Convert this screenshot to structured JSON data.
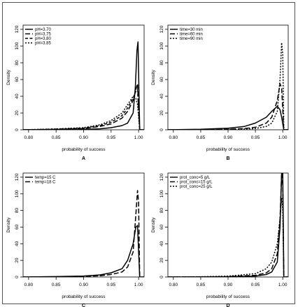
{
  "chart_data": [
    {
      "type": "line",
      "panel_label": "A",
      "xlabel": "probability of success",
      "ylabel": "Density",
      "xlim": [
        0.79,
        1.01
      ],
      "ylim": [
        0,
        125
      ],
      "x_ticks": [
        "0.80",
        "0.85",
        "0.90",
        "0.95",
        "1.00"
      ],
      "y_ticks": [
        "0",
        "20",
        "40",
        "60",
        "80",
        "100",
        "120"
      ],
      "legend_position": "top-left",
      "series": [
        {
          "name": "pH=3.70",
          "dash": "solid",
          "x": [
            0.79,
            0.85,
            0.9,
            0.93,
            0.95,
            0.97,
            0.98,
            0.99,
            0.994,
            0.997,
            0.999,
            1.002,
            1.01
          ],
          "y": [
            0,
            0.2,
            0.6,
            1.2,
            2.5,
            5,
            8,
            20,
            50,
            95,
            105,
            0,
            0
          ]
        },
        {
          "name": "pH=3.75",
          "dash": "long",
          "x": [
            0.79,
            0.85,
            0.9,
            0.93,
            0.95,
            0.97,
            0.98,
            0.99,
            0.995,
            0.998,
            1.002,
            1.01
          ],
          "y": [
            0,
            0.5,
            1.5,
            4,
            7,
            14,
            22,
            35,
            48,
            55,
            0,
            0
          ]
        },
        {
          "name": "pH=3.80",
          "dash": "dash",
          "x": [
            0.79,
            0.85,
            0.9,
            0.93,
            0.95,
            0.97,
            0.98,
            0.99,
            0.995,
            0.998,
            1.002,
            1.01
          ],
          "y": [
            0,
            0.8,
            2,
            5,
            9,
            17,
            26,
            38,
            46,
            48,
            0,
            0
          ]
        },
        {
          "name": "pH=3.85",
          "dash": "short",
          "x": [
            0.79,
            0.85,
            0.9,
            0.93,
            0.95,
            0.97,
            0.98,
            0.99,
            0.995,
            0.998,
            1.002,
            1.01
          ],
          "y": [
            0,
            1,
            2.5,
            6,
            11,
            20,
            30,
            40,
            38,
            30,
            0,
            0
          ]
        }
      ]
    },
    {
      "type": "line",
      "panel_label": "B",
      "xlabel": "probability of success",
      "ylabel": "Density",
      "xlim": [
        0.79,
        1.01
      ],
      "ylim": [
        0,
        125
      ],
      "x_ticks": [
        "0.80",
        "0.85",
        "0.90",
        "0.95",
        "1.00"
      ],
      "y_ticks": [
        "0",
        "20",
        "40",
        "60",
        "80",
        "100",
        "120"
      ],
      "legend_position": "top-left",
      "series": [
        {
          "name": "time=30 min",
          "dash": "solid",
          "x": [
            0.79,
            0.85,
            0.9,
            0.93,
            0.95,
            0.97,
            0.98,
            0.99,
            0.995,
            0.998,
            1.002,
            1.01
          ],
          "y": [
            0,
            0.6,
            1.8,
            4,
            8,
            15,
            22,
            28,
            24,
            15,
            0,
            0
          ]
        },
        {
          "name": "time=60 min",
          "dash": "long",
          "x": [
            0.79,
            0.85,
            0.9,
            0.93,
            0.95,
            0.97,
            0.98,
            0.99,
            0.995,
            0.998,
            1.002,
            1.01
          ],
          "y": [
            0,
            0.2,
            0.6,
            1.5,
            3,
            8,
            15,
            35,
            55,
            50,
            0,
            0
          ]
        },
        {
          "name": "time=90 min",
          "dash": "short",
          "x": [
            0.79,
            0.85,
            0.9,
            0.93,
            0.95,
            0.97,
            0.98,
            0.99,
            0.995,
            0.998,
            1.0,
            1.002,
            1.01
          ],
          "y": [
            0,
            0.1,
            0.3,
            0.8,
            1.5,
            4,
            8,
            22,
            60,
            104,
            90,
            0,
            0
          ]
        }
      ]
    },
    {
      "type": "line",
      "panel_label": "C",
      "xlabel": "probability of success",
      "ylabel": "Density",
      "xlim": [
        0.79,
        1.01
      ],
      "ylim": [
        0,
        125
      ],
      "x_ticks": [
        "0.80",
        "0.85",
        "0.90",
        "0.95",
        "1.00"
      ],
      "y_ticks": [
        "0",
        "20",
        "40",
        "60",
        "80",
        "100",
        "120"
      ],
      "legend_position": "top-left",
      "series": [
        {
          "name": "temp=15 C",
          "dash": "solid",
          "x": [
            0.79,
            0.85,
            0.9,
            0.93,
            0.95,
            0.97,
            0.98,
            0.99,
            0.995,
            0.998,
            1.002,
            1.01
          ],
          "y": [
            0,
            0.5,
            1.2,
            2.5,
            5,
            10,
            20,
            40,
            60,
            62,
            0,
            0
          ]
        },
        {
          "name": "temp=18 C",
          "dash": "long",
          "x": [
            0.79,
            0.85,
            0.9,
            0.93,
            0.95,
            0.97,
            0.98,
            0.99,
            0.995,
            0.998,
            1.0,
            1.002,
            1.01
          ],
          "y": [
            0,
            0.2,
            0.6,
            1.5,
            3,
            6,
            12,
            30,
            75,
            104,
            90,
            0,
            0
          ]
        }
      ]
    },
    {
      "type": "line",
      "panel_label": "D",
      "xlabel": "probability of success",
      "ylabel": "Density",
      "xlim": [
        0.79,
        1.01
      ],
      "ylim": [
        0,
        125
      ],
      "x_ticks": [
        "0.80",
        "0.85",
        "0.90",
        "0.95",
        "1.00"
      ],
      "y_ticks": [
        "0",
        "20",
        "40",
        "60",
        "80",
        "100",
        "120"
      ],
      "legend_position": "top-left",
      "series": [
        {
          "name": "prot_conc=5 g/L",
          "dash": "solid",
          "x": [
            0.79,
            0.85,
            0.9,
            0.95,
            0.97,
            0.98,
            0.99,
            0.995,
            0.998,
            1.0,
            1.002,
            1.01
          ],
          "y": [
            0,
            0.1,
            0.3,
            1,
            3,
            6,
            18,
            60,
            125,
            125,
            0,
            0
          ]
        },
        {
          "name": "prot_conc=15 g/L",
          "dash": "long",
          "x": [
            0.79,
            0.85,
            0.9,
            0.95,
            0.97,
            0.98,
            0.99,
            0.995,
            0.998,
            1.0,
            1.002,
            1.01
          ],
          "y": [
            0,
            0.2,
            0.5,
            2,
            5,
            10,
            28,
            70,
            125,
            110,
            0,
            0
          ]
        },
        {
          "name": "prot_conc=25 g/L",
          "dash": "short",
          "x": [
            0.79,
            0.85,
            0.9,
            0.95,
            0.97,
            0.98,
            0.99,
            0.995,
            0.998,
            1.0,
            1.002,
            1.01
          ],
          "y": [
            0,
            0.3,
            1,
            4,
            10,
            18,
            40,
            70,
            95,
            80,
            0,
            0
          ]
        }
      ]
    }
  ]
}
